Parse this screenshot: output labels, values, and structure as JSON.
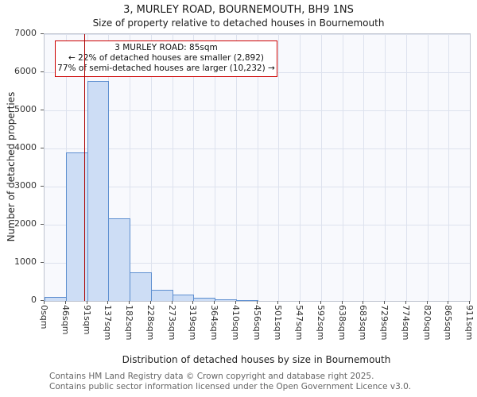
{
  "title": "3, MURLEY ROAD, BOURNEMOUTH, BH9 1NS",
  "subtitle": "Size of property relative to detached houses in Bournemouth",
  "chart_data": {
    "type": "bar",
    "title": "3, MURLEY ROAD, BOURNEMOUTH, BH9 1NS — Size of property relative to detached houses in Bournemouth",
    "xlabel": "Distribution of detached houses by size in Bournemouth",
    "ylabel": "Number of detached properties",
    "ylim": [
      0,
      7000
    ],
    "ytick_step": 1000,
    "yticks": [
      0,
      1000,
      2000,
      3000,
      4000,
      5000,
      6000,
      7000
    ],
    "categories": [
      "0sqm",
      "46sqm",
      "91sqm",
      "137sqm",
      "182sqm",
      "228sqm",
      "273sqm",
      "319sqm",
      "364sqm",
      "410sqm",
      "456sqm",
      "501sqm",
      "547sqm",
      "592sqm",
      "638sqm",
      "683sqm",
      "729sqm",
      "774sqm",
      "820sqm",
      "865sqm",
      "911sqm"
    ],
    "values": [
      100,
      3900,
      5780,
      2170,
      750,
      300,
      160,
      80,
      40,
      30,
      0,
      0,
      0,
      0,
      0,
      0,
      0,
      0,
      0,
      0
    ],
    "x_max_sqm": 911,
    "grid": true,
    "legend": "none",
    "marker": {
      "sqm": 85,
      "label": "3 MURLEY ROAD: 85sqm"
    },
    "annotation_lines": [
      "3 MURLEY ROAD: 85sqm",
      "← 22% of detached houses are smaller (2,892)",
      "77% of semi-detached houses are larger (10,232) →"
    ],
    "colors": {
      "bar_fill": "#cdddf5",
      "bar_border": "#5e8fd0",
      "grid": "#dde2ee",
      "plot_bg": "#f8f9fd",
      "marker": "#aa0000",
      "annotation_border": "#cc0000"
    }
  },
  "footer": {
    "line1": "Contains HM Land Registry data © Crown copyright and database right 2025.",
    "line2": "Contains public sector information licensed under the Open Government Licence v3.0."
  }
}
